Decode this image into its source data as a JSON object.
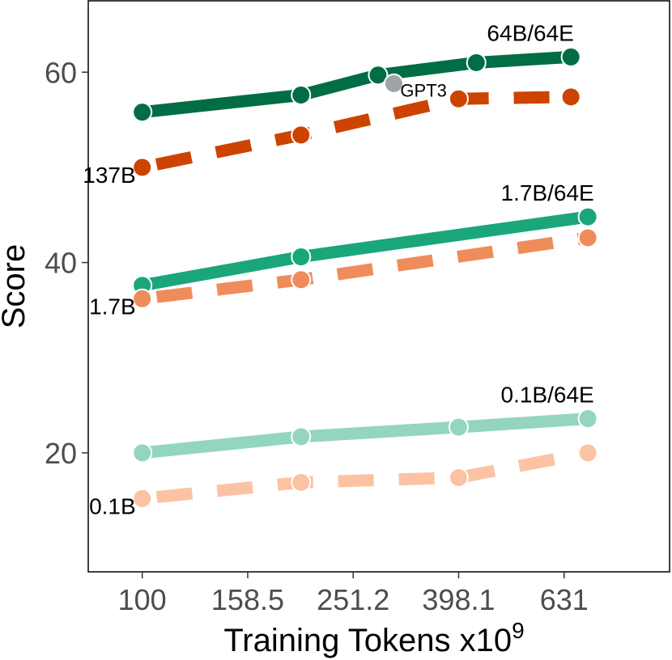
{
  "chart_data": {
    "type": "line",
    "xlabel": "Training Tokens x10",
    "xlabel_superscript": "9",
    "ylabel": "Score",
    "x_scale": "log",
    "xlim": [
      79,
      1000
    ],
    "ylim": [
      7.5,
      67.5
    ],
    "x_ticks": [
      100,
      158.5,
      251.2,
      398.1,
      631
    ],
    "x_tick_labels": [
      "100",
      "158.5",
      "251.2",
      "398.1",
      "631"
    ],
    "y_ticks": [
      20,
      40,
      60
    ],
    "y_tick_labels": [
      "20",
      "40",
      "60"
    ],
    "grid": false,
    "series": [
      {
        "label": "64B/64E",
        "color": "#006d44",
        "dash": "solid",
        "x": [
          100,
          200,
          280,
          430,
          650
        ],
        "y": [
          55.8,
          57.6,
          59.7,
          61.0,
          61.6
        ]
      },
      {
        "label": "137B",
        "color": "#cc4400",
        "dash": "dashed",
        "x": [
          100,
          200,
          398,
          650
        ],
        "y": [
          50.0,
          53.4,
          57.2,
          57.4
        ]
      },
      {
        "label": "1.7B/64E",
        "color": "#1aa67a",
        "dash": "solid",
        "x": [
          100,
          200,
          700
        ],
        "y": [
          37.6,
          40.6,
          44.8
        ]
      },
      {
        "label": "1.7B",
        "color": "#ef8c5c",
        "dash": "dashed",
        "x": [
          100,
          200,
          700
        ],
        "y": [
          36.2,
          38.2,
          42.6
        ]
      },
      {
        "label": "0.1B/64E",
        "color": "#94d5be",
        "dash": "solid",
        "x": [
          100,
          200,
          398,
          700
        ],
        "y": [
          20.0,
          21.7,
          22.7,
          23.6
        ]
      },
      {
        "label": "0.1B",
        "color": "#fbc3a4",
        "dash": "dashed",
        "x": [
          100,
          200,
          398,
          700
        ],
        "y": [
          15.2,
          16.9,
          17.4,
          20.0
        ]
      }
    ],
    "annotations": [
      {
        "label": "GPT3",
        "x": 300,
        "y": 58.8,
        "color": "#9fa3a6"
      }
    ]
  }
}
